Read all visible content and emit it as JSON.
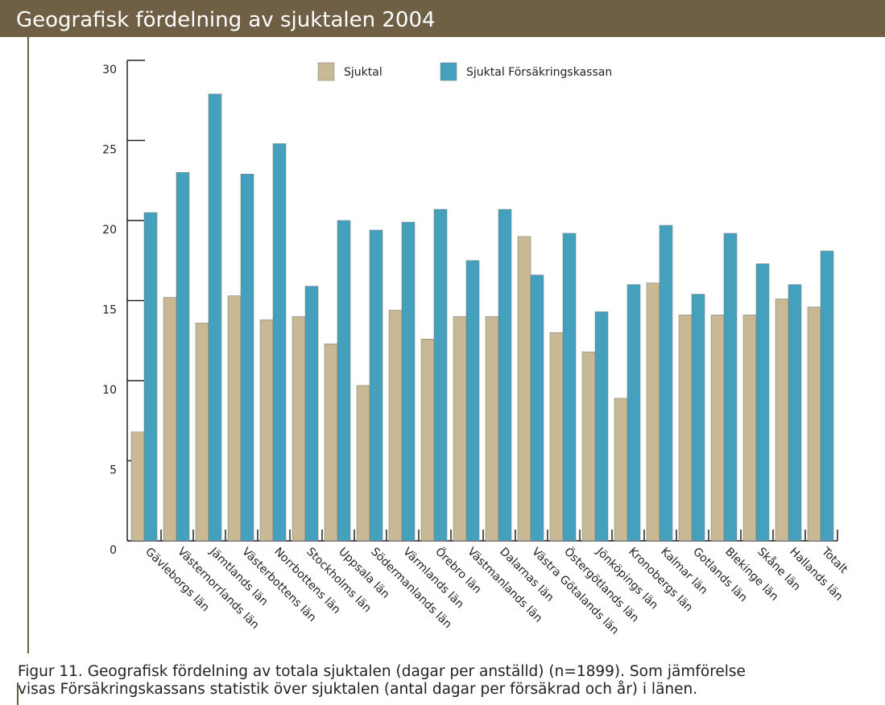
{
  "chart_data": {
    "type": "bar",
    "title": "Geografisk fördelning av sjuktalen 2004",
    "categories": [
      "Gävleborgs län",
      "Västernorrlands län",
      "Jämtlands län",
      "Västerbottens län",
      "Norrbottens län",
      "Stockholms län",
      "Uppsala län",
      "Södermanlands län",
      "Värmlands län",
      "Örebro län",
      "Västmanlands län",
      "Dalarnas län",
      "Västra Götalands län",
      "Östergötlands län",
      "Jönköpings län",
      "Kronobergs län",
      "Kalmar län",
      "Gotlands län",
      "Blekinge län",
      "Skåne län",
      "Hallands län",
      "Totalt"
    ],
    "series": [
      {
        "name": "Sjuktal",
        "color": "#c8b994",
        "values": [
          6.8,
          15.2,
          13.6,
          15.3,
          13.8,
          14.0,
          12.3,
          9.7,
          14.4,
          12.6,
          14.0,
          14.0,
          19.0,
          13.0,
          11.8,
          8.9,
          16.1,
          14.1,
          14.1,
          14.1,
          15.1,
          14.6
        ]
      },
      {
        "name": "Sjuktal Försäkringskassan",
        "color": "#44a0bd",
        "values": [
          20.5,
          23.0,
          27.9,
          22.9,
          24.8,
          15.9,
          20.0,
          19.4,
          19.9,
          20.7,
          17.5,
          20.7,
          16.6,
          19.2,
          14.3,
          16.0,
          19.7,
          15.4,
          19.2,
          17.3,
          16.0,
          18.1
        ]
      }
    ],
    "ylim": [
      0,
      30
    ],
    "yticks": [
      0,
      5,
      10,
      15,
      20,
      25,
      30
    ],
    "legend": "top",
    "caption": [
      "Figur 11. Geografisk fördelning av totala sjuktalen (dagar per anställd) (n=1899). Som jämförelse",
      "visas Försäkringskassans statistik över sjuktalen (antal dagar per försäkrad och år) i länen."
    ]
  }
}
